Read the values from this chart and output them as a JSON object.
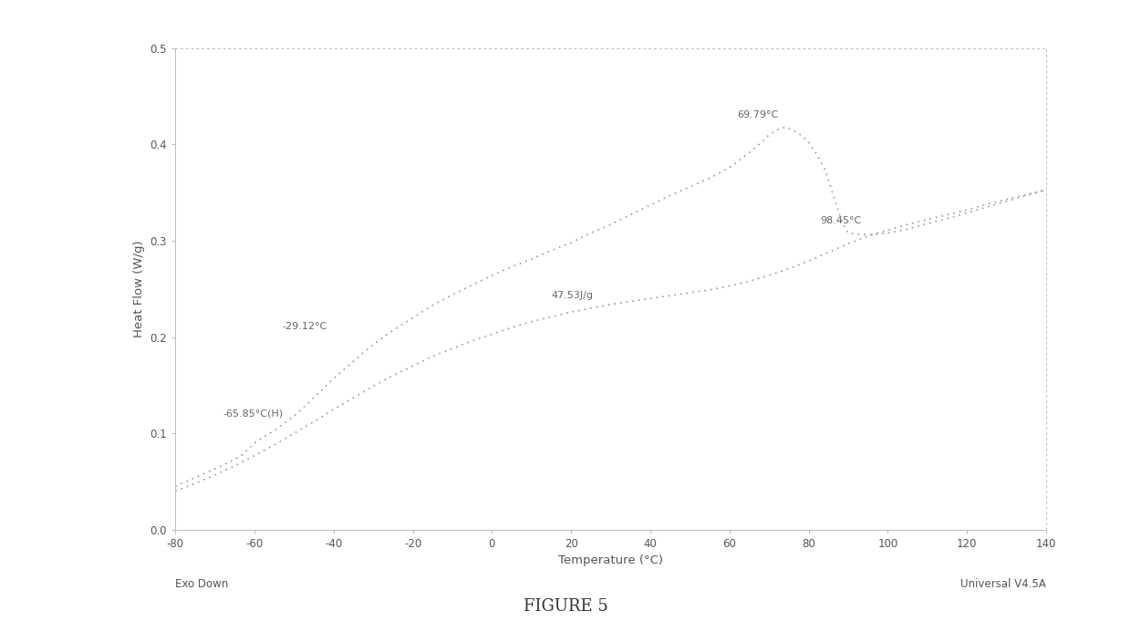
{
  "title": "FIGURE 5",
  "xlabel": "Temperature (°C)",
  "ylabel": "Heat Flow (W/g)",
  "xlim": [
    -80,
    140
  ],
  "ylim": [
    0.0,
    0.5
  ],
  "xticks": [
    -80,
    -60,
    -40,
    -20,
    0,
    20,
    40,
    60,
    80,
    100,
    120,
    140
  ],
  "xtick_labels": [
    "-80",
    "-60",
    "-40",
    "-20",
    "0",
    "20",
    "40",
    "60",
    "80",
    "100",
    "120",
    "140"
  ],
  "yticks": [
    0.0,
    0.1,
    0.2,
    0.3,
    0.4,
    0.5
  ],
  "ytick_labels": [
    "0.0",
    "0.1",
    "0.2",
    "0.3",
    "0.4",
    "0.5"
  ],
  "exo_down_label": "Exo Down",
  "universal_label": "Universal V4.5A",
  "line_color": "#999999",
  "line_width": 1.2,
  "background_color": "#ffffff",
  "text_color": "#555555",
  "border_color": "#bbbbbb",
  "annot_color": "#666666",
  "annot_fontsize": 8.0,
  "tick_fontsize": 8.5,
  "label_fontsize": 9.5,
  "curve1_x": [
    -80,
    -75,
    -70,
    -65,
    -63,
    -60,
    -55,
    -50,
    -45,
    -40,
    -35,
    -30,
    -25,
    -20,
    -15,
    -10,
    -5,
    0,
    5,
    10,
    15,
    20,
    25,
    30,
    35,
    40,
    45,
    50,
    55,
    60,
    63,
    66,
    68,
    70,
    72,
    74,
    76,
    78,
    80,
    82,
    84,
    85,
    86,
    87,
    88,
    89,
    90,
    95,
    100,
    105,
    110,
    115,
    120,
    125,
    130,
    135,
    140
  ],
  "curve1_y": [
    0.045,
    0.054,
    0.063,
    0.073,
    0.078,
    0.09,
    0.103,
    0.118,
    0.137,
    0.157,
    0.175,
    0.192,
    0.207,
    0.22,
    0.233,
    0.244,
    0.254,
    0.264,
    0.273,
    0.281,
    0.29,
    0.298,
    0.308,
    0.317,
    0.327,
    0.337,
    0.347,
    0.356,
    0.365,
    0.376,
    0.385,
    0.395,
    0.402,
    0.41,
    0.415,
    0.418,
    0.415,
    0.41,
    0.402,
    0.39,
    0.375,
    0.363,
    0.35,
    0.337,
    0.325,
    0.315,
    0.308,
    0.306,
    0.308,
    0.312,
    0.318,
    0.323,
    0.329,
    0.335,
    0.341,
    0.347,
    0.353
  ],
  "curve2_x": [
    -80,
    -75,
    -70,
    -65,
    -60,
    -55,
    -50,
    -45,
    -40,
    -35,
    -30,
    -25,
    -20,
    -15,
    -10,
    -5,
    0,
    5,
    10,
    15,
    20,
    25,
    30,
    35,
    40,
    45,
    50,
    55,
    60,
    65,
    70,
    75,
    80,
    85,
    90,
    95,
    100,
    105,
    110,
    115,
    120,
    125,
    130,
    135,
    140
  ],
  "curve2_y": [
    0.04,
    0.048,
    0.057,
    0.066,
    0.077,
    0.088,
    0.1,
    0.112,
    0.125,
    0.137,
    0.149,
    0.16,
    0.17,
    0.18,
    0.188,
    0.196,
    0.203,
    0.21,
    0.216,
    0.221,
    0.226,
    0.23,
    0.234,
    0.237,
    0.24,
    0.243,
    0.246,
    0.249,
    0.253,
    0.258,
    0.264,
    0.271,
    0.279,
    0.288,
    0.297,
    0.305,
    0.311,
    0.317,
    0.322,
    0.327,
    0.332,
    0.338,
    0.343,
    0.348,
    0.353
  ]
}
